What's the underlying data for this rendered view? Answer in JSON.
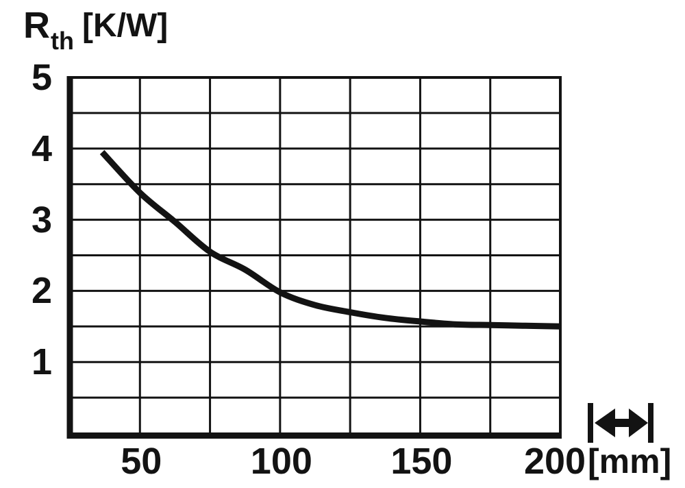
{
  "colors": {
    "ink": "#131313",
    "background": "#ffffff"
  },
  "figure": {
    "ylabel": {
      "symbol": "R",
      "subscript": "th",
      "unit": "[K/W]"
    }
  },
  "icons": {
    "length_arrow": "double-headed-horizontal-arrow-between-end-bars"
  },
  "chart_data": {
    "type": "line",
    "ylabel": "Rth [K/W]",
    "xlabel": "[mm]",
    "xlim": [
      25,
      200
    ],
    "ylim": [
      0,
      5
    ],
    "x_grid_step": 25,
    "y_grid_step": 0.5,
    "x_ticks": [
      50,
      100,
      150,
      200
    ],
    "y_ticks": [
      5,
      4,
      3,
      2,
      1
    ],
    "grid": true,
    "legend": false,
    "series": [
      {
        "name": "Rth",
        "x": [
          36.5,
          50,
          62.5,
          75,
          87.5,
          100,
          112.5,
          125,
          137.5,
          150,
          162.5,
          175,
          187.5,
          200
        ],
        "y": [
          3.95,
          3.38,
          2.97,
          2.55,
          2.3,
          1.98,
          1.8,
          1.7,
          1.62,
          1.57,
          1.53,
          1.52,
          1.51,
          1.5
        ]
      }
    ]
  }
}
